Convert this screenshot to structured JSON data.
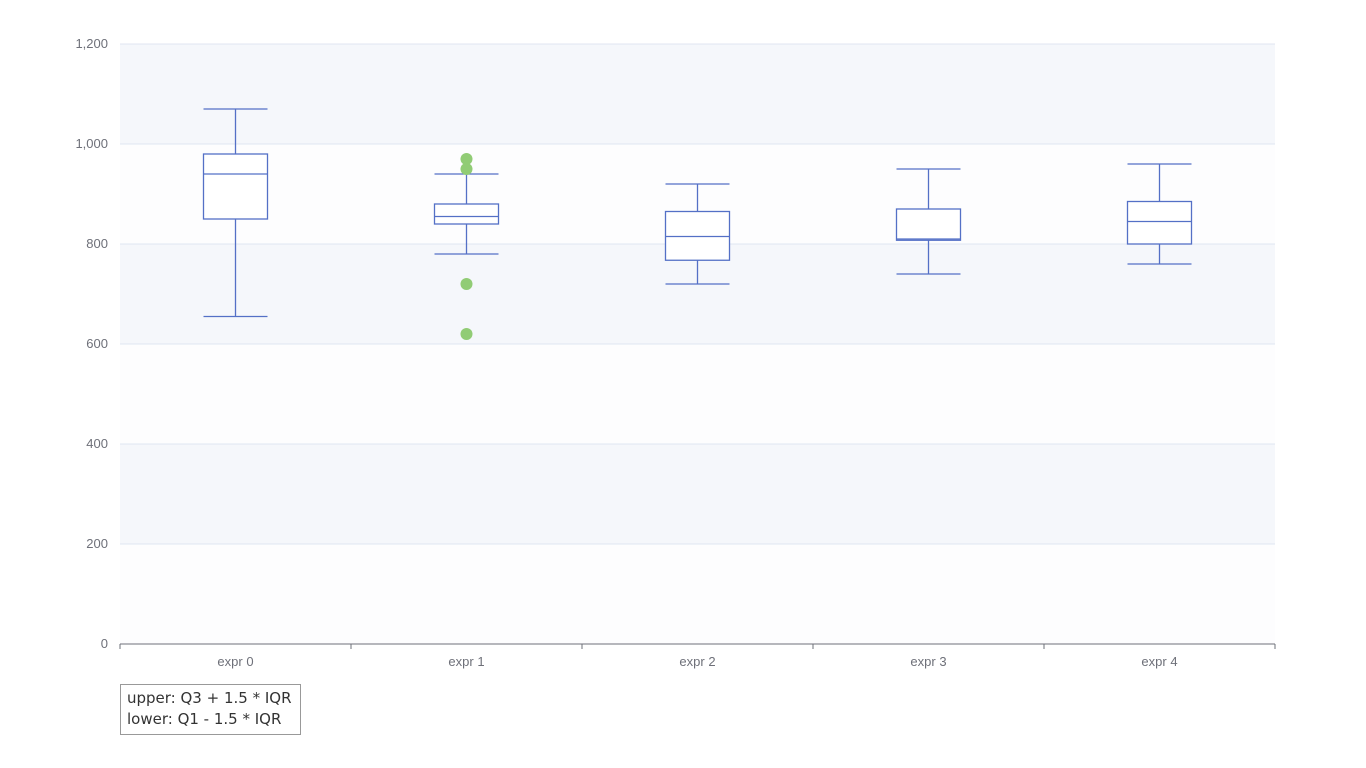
{
  "chart_data": {
    "type": "boxplot",
    "categories": [
      "expr 0",
      "expr 1",
      "expr 2",
      "expr 3",
      "expr 4"
    ],
    "ylim": [
      0,
      1200
    ],
    "yticks": [
      0,
      200,
      400,
      600,
      800,
      1000,
      1200
    ],
    "ytick_labels": [
      "0",
      "200",
      "400",
      "600",
      "800",
      "1,000",
      "1,200"
    ],
    "grid": true,
    "boxes": [
      {
        "category": "expr 0",
        "lower": 655,
        "q1": 850,
        "median": 940,
        "q3": 980,
        "upper": 1070
      },
      {
        "category": "expr 1",
        "lower": 780,
        "q1": 840,
        "median": 855,
        "q3": 880,
        "upper": 940
      },
      {
        "category": "expr 2",
        "lower": 720,
        "q1": 767.5,
        "median": 815,
        "q3": 865,
        "upper": 920
      },
      {
        "category": "expr 3",
        "lower": 740,
        "q1": 807.5,
        "median": 810,
        "q3": 870,
        "upper": 950
      },
      {
        "category": "expr 4",
        "lower": 760,
        "q1": 800,
        "median": 845,
        "q3": 885,
        "upper": 960
      }
    ],
    "outliers": [
      {
        "category": "expr 1",
        "value": 970
      },
      {
        "category": "expr 1",
        "value": 950
      },
      {
        "category": "expr 1",
        "value": 720
      },
      {
        "category": "expr 1",
        "value": 620
      }
    ],
    "colors": {
      "box": "#5470c6",
      "outlier": "#91cc75",
      "band": "#f5f7fb",
      "band_alt": "#fdfdfe",
      "grid": "#e0e6f1",
      "axis": "#6e7079"
    },
    "note": {
      "line1": "upper: Q3 + 1.5 * IQR",
      "line2": "lower: Q1 - 1.5 * IQR"
    }
  }
}
